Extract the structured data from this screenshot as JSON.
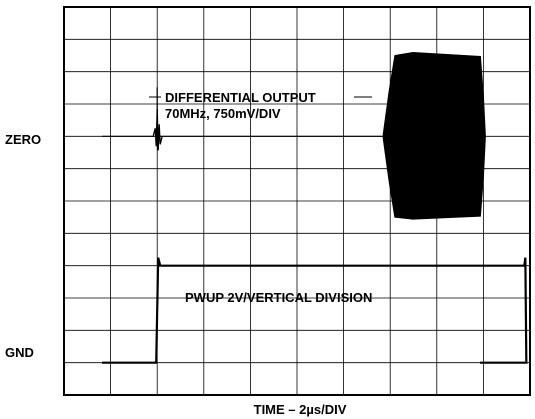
{
  "chart_data": {
    "type": "line",
    "xlabel": "TIME – 2µs/DIV",
    "grid": true,
    "divisions": {
      "x": 10,
      "y": 12
    },
    "x_range_us": [
      0,
      20
    ],
    "reference_labels": {
      "zero": "ZERO",
      "gnd": "GND"
    },
    "series": [
      {
        "name": "DIFFERENTIAL OUTPUT",
        "scale": "70MHz, 750mV/DIV",
        "burst_start_us": 13.7,
        "burst_full_us": 14.2,
        "burst_end_us": 18.0,
        "envelope_peak_div": 2.5,
        "glitch_time_us": 4.0
      },
      {
        "name": "PWUP",
        "scale": "2V/VERTICAL DIVISION",
        "rise_us": 4.0,
        "fall_us": 19.8,
        "high_level_div": 3
      }
    ]
  }
}
